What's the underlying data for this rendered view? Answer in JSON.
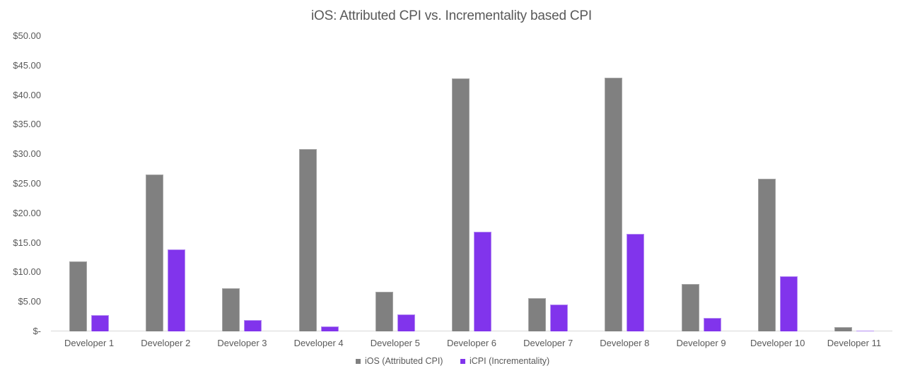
{
  "chart_data": {
    "type": "bar",
    "title": "iOS: Attributed CPI vs. Incrementality based CPI",
    "xlabel": "",
    "ylabel": "",
    "ylim": [
      0,
      50
    ],
    "yticks": [
      "$-",
      "$5.00",
      "$10.00",
      "$15.00",
      "$20.00",
      "$25.00",
      "$30.00",
      "$35.00",
      "$40.00",
      "$45.00",
      "$50.00"
    ],
    "grid": false,
    "legend_position": "bottom",
    "categories": [
      "Developer 1",
      "Developer 2",
      "Developer 3",
      "Developer 4",
      "Developer 5",
      "Developer 6",
      "Developer 7",
      "Developer 8",
      "Developer 9",
      "Developer 10",
      "Developer 11"
    ],
    "series": [
      {
        "name": "iOS (Attributed CPI)",
        "color": "#808080",
        "values": [
          11.84,
          26.56,
          7.26,
          30.9,
          6.7,
          42.79,
          5.62,
          42.94,
          8.05,
          25.8,
          0.68
        ]
      },
      {
        "name": "iCPI (Incrementality)",
        "color": "#8134ec",
        "values": [
          2.79,
          13.88,
          1.88,
          0.84,
          2.87,
          16.83,
          4.58,
          16.47,
          2.31,
          9.29,
          0.08
        ]
      }
    ]
  }
}
